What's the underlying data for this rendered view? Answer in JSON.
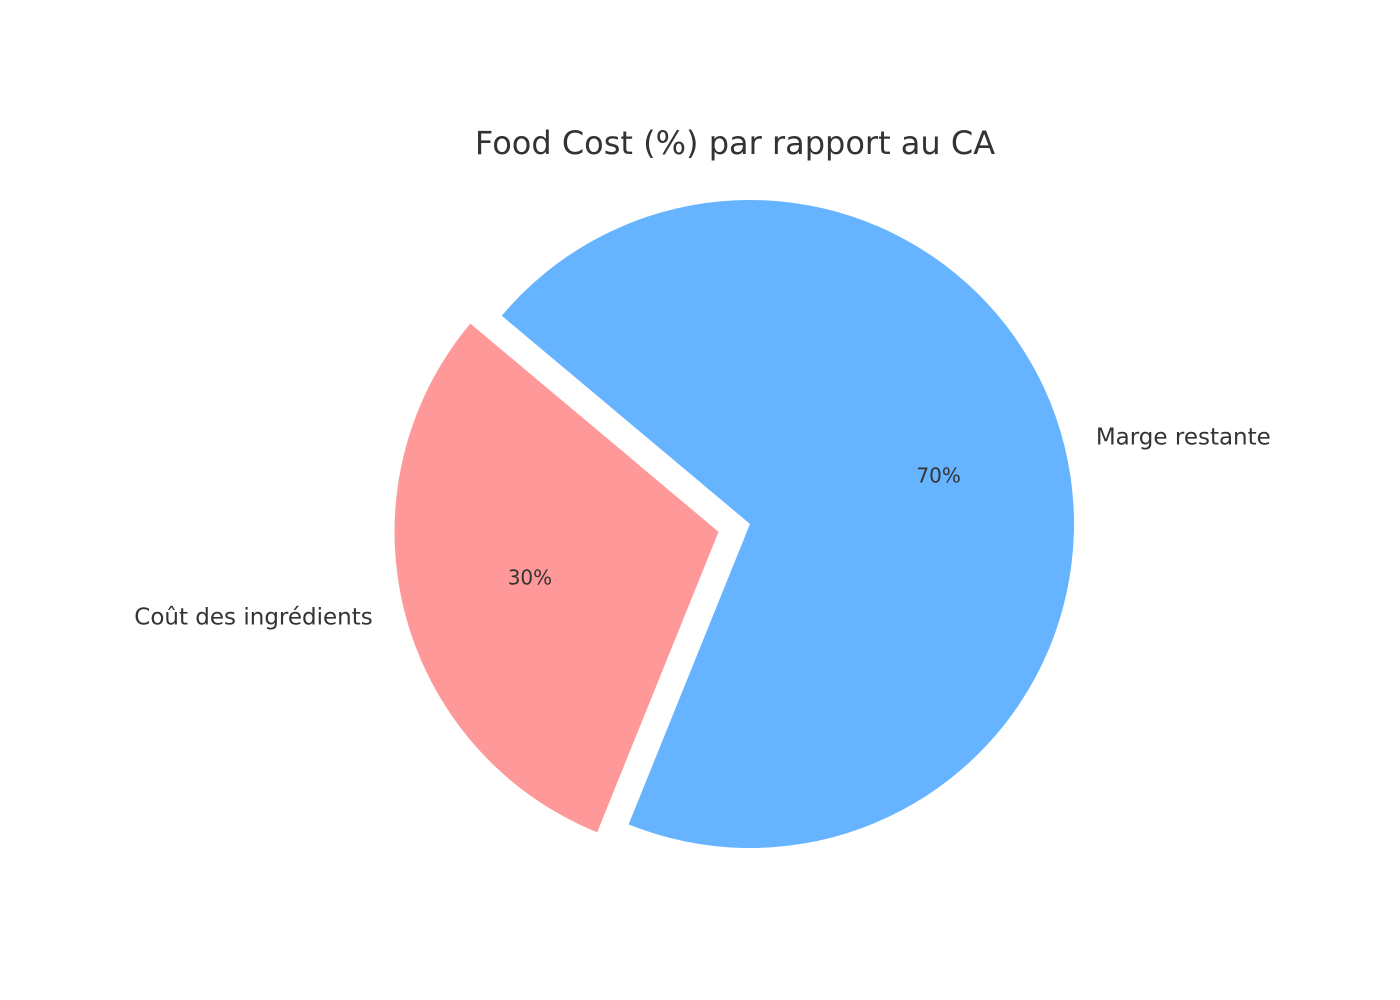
{
  "chart_data": {
    "type": "pie",
    "title": "Food Cost (%) par rapport au CA",
    "categories": [
      "Coût des ingrédients",
      "Marge restante"
    ],
    "values": [
      30,
      70
    ],
    "value_labels": [
      "30%",
      "70%"
    ],
    "colors": [
      "#ff9999",
      "#66b3ff"
    ],
    "start_angle": 140,
    "explode": [
      0.1,
      0
    ]
  }
}
